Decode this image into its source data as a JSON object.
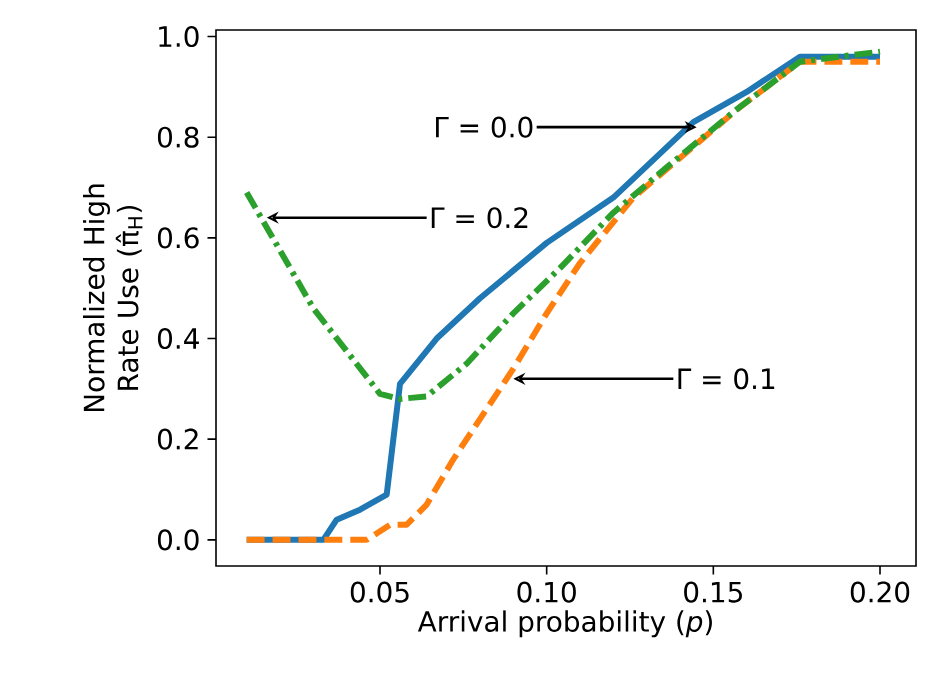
{
  "chart_data": {
    "type": "line",
    "xlabel": "Arrival probability (*p*)",
    "ylabel": "Normalized High Rate Use (π̂$_{H}$)",
    "xlim": [
      0.0008,
      0.2108
    ],
    "ylim": [
      -0.052,
      1.013
    ],
    "xticks": [
      {
        "value": 0.05,
        "label": "0.05"
      },
      {
        "value": 0.1,
        "label": "0.10"
      },
      {
        "value": 0.15,
        "label": "0.15"
      },
      {
        "value": 0.2,
        "label": "0.20"
      }
    ],
    "yticks": [
      {
        "value": 0,
        "label": "0.0"
      },
      {
        "value": 0.2,
        "label": "0.2"
      },
      {
        "value": 0.4,
        "label": "0.4"
      },
      {
        "value": 0.6,
        "label": "0.6"
      },
      {
        "value": 0.8,
        "label": "0.8"
      },
      {
        "value": 1.0,
        "label": "1.0"
      }
    ],
    "grid": false,
    "series": [
      {
        "color": "#1f77b4",
        "line_style": "solid",
        "x": [
          0.01,
          0.033,
          0.037,
          0.044,
          0.052,
          0.056,
          0.067,
          0.08,
          0.1,
          0.12,
          0.144,
          0.16,
          0.176,
          0.2
        ],
        "values": [
          0,
          0,
          0.04,
          0.06,
          0.09,
          0.31,
          0.4,
          0.48,
          0.59,
          0.68,
          0.83,
          0.89,
          0.96,
          0.96
        ]
      },
      {
        "color": "#ff7f0e",
        "line_style": "dashed",
        "x": [
          0.01,
          0.046,
          0.053,
          0.058,
          0.064,
          0.072,
          0.082,
          0.09,
          0.1,
          0.11,
          0.126,
          0.142,
          0.158,
          0.176,
          0.2
        ],
        "values": [
          0,
          0,
          0.03,
          0.03,
          0.07,
          0.16,
          0.26,
          0.34,
          0.45,
          0.55,
          0.68,
          0.77,
          0.86,
          0.95,
          0.95
        ]
      },
      {
        "color": "#2ca02c",
        "line_style": "dashdot",
        "x": [
          0.01,
          0.03,
          0.05,
          0.056,
          0.064,
          0.076,
          0.09,
          0.104,
          0.12,
          0.136,
          0.156,
          0.176,
          0.2
        ],
        "values": [
          0.69,
          0.46,
          0.29,
          0.28,
          0.285,
          0.35,
          0.45,
          0.54,
          0.65,
          0.74,
          0.85,
          0.95,
          0.97
        ]
      }
    ],
    "annotations": [
      {
        "text": "Γ = 0.0",
        "x": 0.145,
        "y": 0.82
      },
      {
        "text": "Γ = 0.2",
        "x": 0.016,
        "y": 0.64
      },
      {
        "text": "Γ = 0.1",
        "x": 0.09,
        "y": 0.32
      }
    ]
  }
}
